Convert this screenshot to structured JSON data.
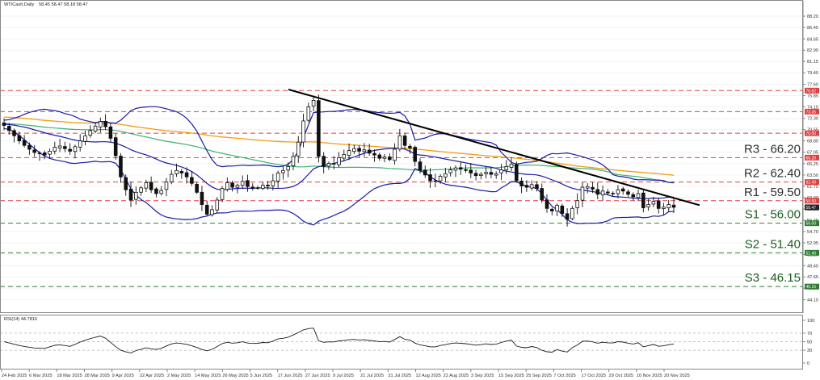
{
  "chart_data": {
    "type": "candlestick",
    "header": {
      "symbol": "WTICash,Daily",
      "ohlc": "58.45 58.47 58.18 58.47"
    },
    "x_tick_labels": [
      "24 Feb 2025",
      "6 Mar 2025",
      "18 Mar 2025",
      "28 Mar 2025",
      "9 Apr 2025",
      "22 Apr 2025",
      "2 May 2025",
      "14 May 2025",
      "26 May 2025",
      "5 Jun 2025",
      "17 Jun 2025",
      "27 Jun 2025",
      "9 Jul 2025",
      "21 Jul 2025",
      "31 Jul 2025",
      "12 Aug 2025",
      "22 Aug 2025",
      "3 Sep 2025",
      "15 Sep 2025",
      "25 Sep 2025",
      "7 Oct 2025",
      "17 Oct 2025",
      "29 Oct 2025",
      "10 Nov 2025",
      "20 Nov 2025"
    ],
    "price_axis": {
      "ylim": [
        43.85,
        88.2
      ],
      "ticks": [
        "88.20",
        "86.45",
        "84.65",
        "82.90",
        "81.15",
        "79.40",
        "77.60",
        "75.85",
        "74.10",
        "72.30",
        "70.55",
        "68.80",
        "67.05",
        "65.25",
        "63.50",
        "61.75",
        "60.00",
        "58.20",
        "56.45",
        "54.70",
        "52.95",
        "51.15",
        "49.40",
        "47.65",
        "45.90",
        "44.10"
      ]
    },
    "levels": [
      {
        "name": "R3",
        "label": "R3 - 66.20",
        "value": 66.2,
        "color": "#e04040"
      },
      {
        "name": "R2",
        "label": "R2 - 62.40",
        "value": 62.4,
        "color": "#e04040"
      },
      {
        "name": "R1",
        "label": "R1 - 59.50",
        "value": 59.5,
        "color": "#e04040"
      },
      {
        "name": "S1",
        "label": "S1 - 56.00",
        "value": 56.0,
        "color": "#2e7d32"
      },
      {
        "name": "S2",
        "label": "S2 - 51.40",
        "value": 51.4,
        "color": "#2e7d32"
      },
      {
        "name": "S3",
        "label": "S3 - 46.15",
        "value": 46.15,
        "color": "#2e7d32"
      }
    ],
    "extra_lines": [
      {
        "value": 76.62,
        "label": "76.62"
      },
      {
        "value": 73.35,
        "label": "73.35"
      },
      {
        "value": 70.0,
        "label": "70.00"
      }
    ],
    "right_badges": [
      {
        "value": 76.62,
        "label": "76.62",
        "color": "#e04040"
      },
      {
        "value": 73.35,
        "label": "73.35",
        "color": "#e04040"
      },
      {
        "value": 70.0,
        "label": "70.00",
        "color": "#e04040"
      },
      {
        "value": 66.2,
        "label": "66.20",
        "color": "#e04040"
      },
      {
        "value": 62.4,
        "label": "62.40",
        "color": "#e04040"
      },
      {
        "value": 59.5,
        "label": "59.50",
        "color": "#e04040"
      },
      {
        "value": 58.47,
        "label": "58.47",
        "color": "#222222"
      },
      {
        "value": 56.0,
        "label": "56.00",
        "color": "#2e7d32"
      },
      {
        "value": 51.4,
        "label": "51.40",
        "color": "#2e7d32"
      },
      {
        "value": 46.15,
        "label": "46.15",
        "color": "#2e7d32"
      }
    ],
    "trendline": {
      "start": {
        "x_date": "17 Jun 2025",
        "y": 76.8
      },
      "end": {
        "x_date": "27 Nov 2025",
        "y": 58.8
      }
    },
    "series": [
      {
        "name": "close",
        "color": "#1a1a1a",
        "values": [
          71.2,
          70.4,
          69.6,
          68.8,
          68.1,
          67.5,
          67.0,
          66.8,
          66.6,
          67.2,
          67.8,
          68.0,
          67.6,
          67.2,
          67.9,
          68.8,
          69.6,
          70.4,
          71.1,
          71.8,
          71.0,
          69.2,
          66.5,
          63.2,
          61.2,
          59.6,
          60.8,
          61.5,
          62.3,
          61.2,
          60.6,
          61.1,
          62.4,
          63.6,
          64.2,
          63.8,
          63.2,
          62.2,
          60.8,
          58.9,
          57.4,
          58.1,
          59.6,
          61.4,
          62.3,
          61.6,
          61.9,
          62.5,
          61.7,
          61.4,
          61.5,
          61.9,
          61.8,
          62.6,
          63.8,
          64.2,
          64.8,
          66.4,
          68.6,
          71.9,
          74.1,
          75.1,
          66.4,
          64.8,
          65.3,
          65.2,
          66.2,
          66.7,
          67.3,
          67.6,
          67.2,
          67.4,
          66.9,
          66.6,
          66.1,
          66.3,
          65.9,
          67.5,
          69.6,
          68.1,
          67.7,
          65.6,
          64.2,
          63.5,
          62.6,
          62.6,
          63.3,
          63.7,
          64.3,
          64.6,
          64.4,
          64.2,
          63.8,
          63.4,
          63.6,
          63.9,
          63.6,
          63.7,
          64.3,
          64.8,
          65.2,
          62.6,
          61.8,
          61.6,
          62.0,
          61.4,
          59.6,
          58.3,
          57.9,
          58.8,
          57.5,
          56.6,
          58.3,
          59.5,
          61.6,
          61.7,
          61.3,
          60.5,
          61.0,
          60.7,
          60.6,
          61.2,
          61.0,
          60.5,
          60.1,
          60.6,
          58.4,
          58.9,
          59.4,
          58.3,
          58.5,
          58.9,
          58.47
        ]
      },
      {
        "name": "MA (200)",
        "color": "#f39c12"
      },
      {
        "name": "MA (100)",
        "color": "#3cb371"
      },
      {
        "name": "Bollinger (20, 2)",
        "color": "#1a1aa8"
      }
    ],
    "rsi": {
      "label": "RSI(14) 44.7816",
      "ylim": [
        0,
        100
      ],
      "ticks": [
        "100",
        "70",
        "50",
        "30",
        "0"
      ],
      "levels": [
        70,
        50,
        30
      ],
      "current": 44.78
    }
  }
}
